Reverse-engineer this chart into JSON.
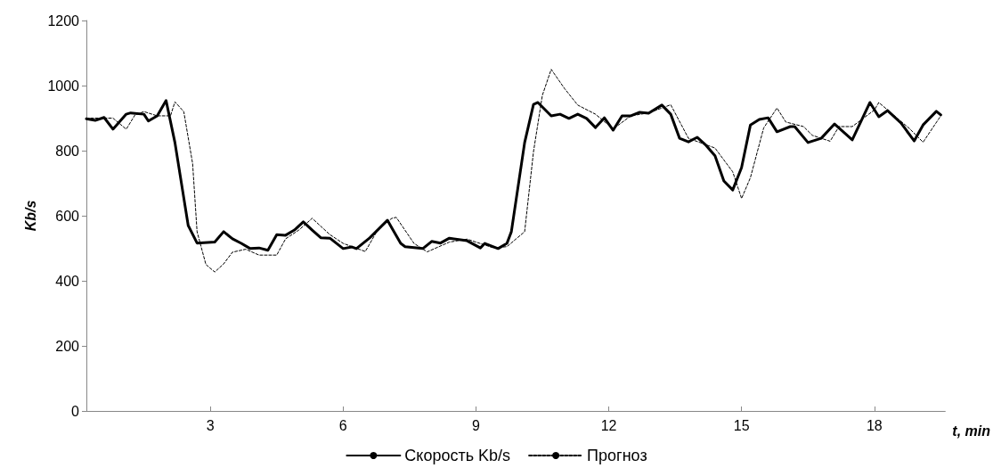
{
  "chart_data": {
    "type": "line",
    "xlabel": "t, min",
    "ylabel": "Kb/s",
    "xlim": [
      0.2,
      19.6
    ],
    "xticks": [
      3,
      6,
      9,
      12,
      15,
      18
    ],
    "ylim": [
      0,
      1200
    ],
    "yticks": [
      0,
      200,
      400,
      600,
      800,
      1000,
      1200
    ],
    "grid": false,
    "legend": "bottom",
    "marker": "none",
    "series": [
      {
        "name": "Скорость Kb/s",
        "color": "#000000",
        "line_style": "solid",
        "x": [
          0.2,
          0.4,
          0.6,
          0.8,
          1.1,
          1.2,
          1.5,
          1.6,
          1.8,
          2.0,
          2.2,
          2.5,
          2.7,
          3.1,
          3.3,
          3.5,
          3.7,
          3.9,
          4.1,
          4.3,
          4.5,
          4.7,
          4.9,
          5.1,
          5.3,
          5.5,
          5.7,
          6.0,
          6.2,
          6.3,
          6.6,
          7.0,
          7.3,
          7.4,
          7.8,
          8.0,
          8.2,
          8.4,
          8.8,
          9.1,
          9.2,
          9.5,
          9.7,
          9.8,
          10.1,
          10.3,
          10.4,
          10.7,
          10.9,
          11.1,
          11.3,
          11.5,
          11.7,
          11.9,
          12.1,
          12.3,
          12.5,
          12.7,
          12.9,
          13.2,
          13.4,
          13.6,
          13.8,
          14.0,
          14.2,
          14.4,
          14.6,
          14.8,
          15.0,
          15.2,
          15.4,
          15.6,
          15.8,
          16.1,
          16.2,
          16.5,
          16.8,
          17.1,
          17.5,
          17.9,
          18.1,
          18.3,
          18.6,
          18.9,
          19.1,
          19.4,
          19.5
        ],
        "values": [
          898,
          893,
          902,
          866,
          912,
          916,
          912,
          891,
          907,
          954,
          825,
          570,
          516,
          519,
          551,
          529,
          515,
          499,
          501,
          494,
          542,
          540,
          556,
          581,
          556,
          532,
          531,
          499,
          504,
          499,
          532,
          586,
          515,
          505,
          499,
          521,
          516,
          531,
          523,
          501,
          515,
          499,
          515,
          551,
          825,
          942,
          948,
          907,
          912,
          899,
          912,
          899,
          871,
          901,
          863,
          907,
          907,
          918,
          915,
          940,
          912,
          838,
          827,
          841,
          816,
          784,
          707,
          679,
          748,
          879,
          896,
          901,
          858,
          874,
          874,
          825,
          838,
          882,
          833,
          948,
          904,
          923,
          885,
          830,
          879,
          921,
          910
        ]
      },
      {
        "name": "Прогноз",
        "color": "#000000",
        "line_style": "dashed",
        "x": [
          0.2,
          0.8,
          1.1,
          1.3,
          1.5,
          1.8,
          2.1,
          2.2,
          2.4,
          2.6,
          2.7,
          2.9,
          3.1,
          3.3,
          3.5,
          3.8,
          4.1,
          4.5,
          4.7,
          5.0,
          5.3,
          5.7,
          6.0,
          6.5,
          6.8,
          7.1,
          7.2,
          7.6,
          7.9,
          8.4,
          8.8,
          9.4,
          9.7,
          9.9,
          10.1,
          10.3,
          10.5,
          10.7,
          11.0,
          11.3,
          11.7,
          12.1,
          12.5,
          12.9,
          13.4,
          13.8,
          14.4,
          14.8,
          15.0,
          15.2,
          15.5,
          15.8,
          16.0,
          16.4,
          16.6,
          17.0,
          17.2,
          17.5,
          18.0,
          18.1,
          18.3,
          18.8,
          19.1,
          19.5
        ],
        "values": [
          900,
          900,
          866,
          910,
          920,
          907,
          907,
          950,
          920,
          760,
          551,
          450,
          427,
          452,
          488,
          497,
          479,
          479,
          529,
          556,
          592,
          542,
          515,
          490,
          561,
          592,
          595,
          515,
          489,
          519,
          528,
          501,
          505,
          528,
          551,
          797,
          970,
          1050,
          991,
          940,
          912,
          867,
          907,
          916,
          941,
          838,
          808,
          735,
          653,
          717,
          870,
          931,
          888,
          874,
          847,
          829,
          874,
          874,
          925,
          948,
          925,
          867,
          826,
          907
        ]
      }
    ]
  }
}
